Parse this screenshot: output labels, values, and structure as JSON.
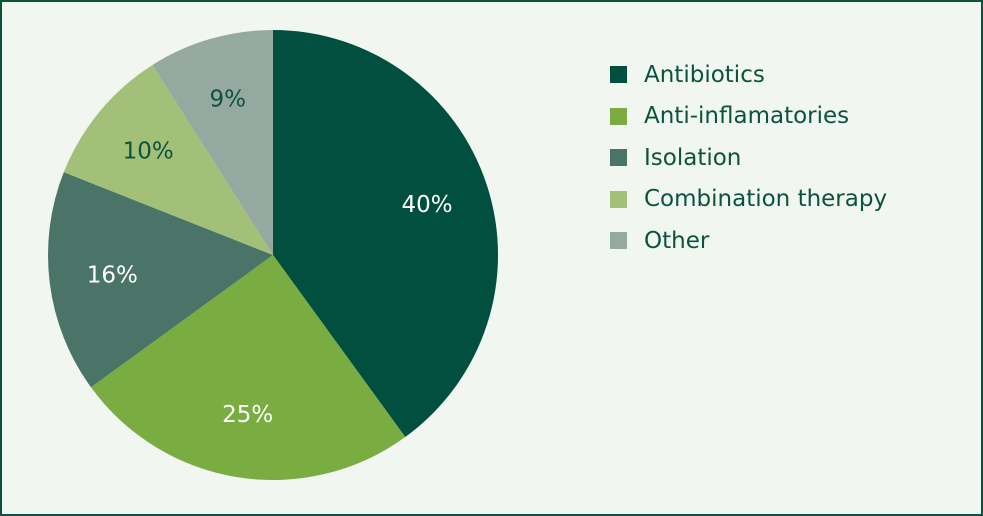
{
  "chart_data": {
    "type": "pie",
    "categories": [
      "Antibiotics",
      "Anti-inflamatories",
      "Isolation",
      "Combination therapy",
      "Other"
    ],
    "values": [
      40,
      25,
      16,
      10,
      9
    ],
    "labels": [
      "40%",
      "25%",
      "16%",
      "10%",
      "9%"
    ],
    "colors": [
      "#004f3f",
      "#79ad41",
      "#4a7467",
      "#a2c078",
      "#96a9a1"
    ],
    "label_colors": [
      "#ffffff",
      "#ffffff",
      "#ffffff",
      "#0b5340",
      "#0b5340"
    ],
    "start": "12 o'clock",
    "direction": "clockwise",
    "legend_position": "right"
  }
}
